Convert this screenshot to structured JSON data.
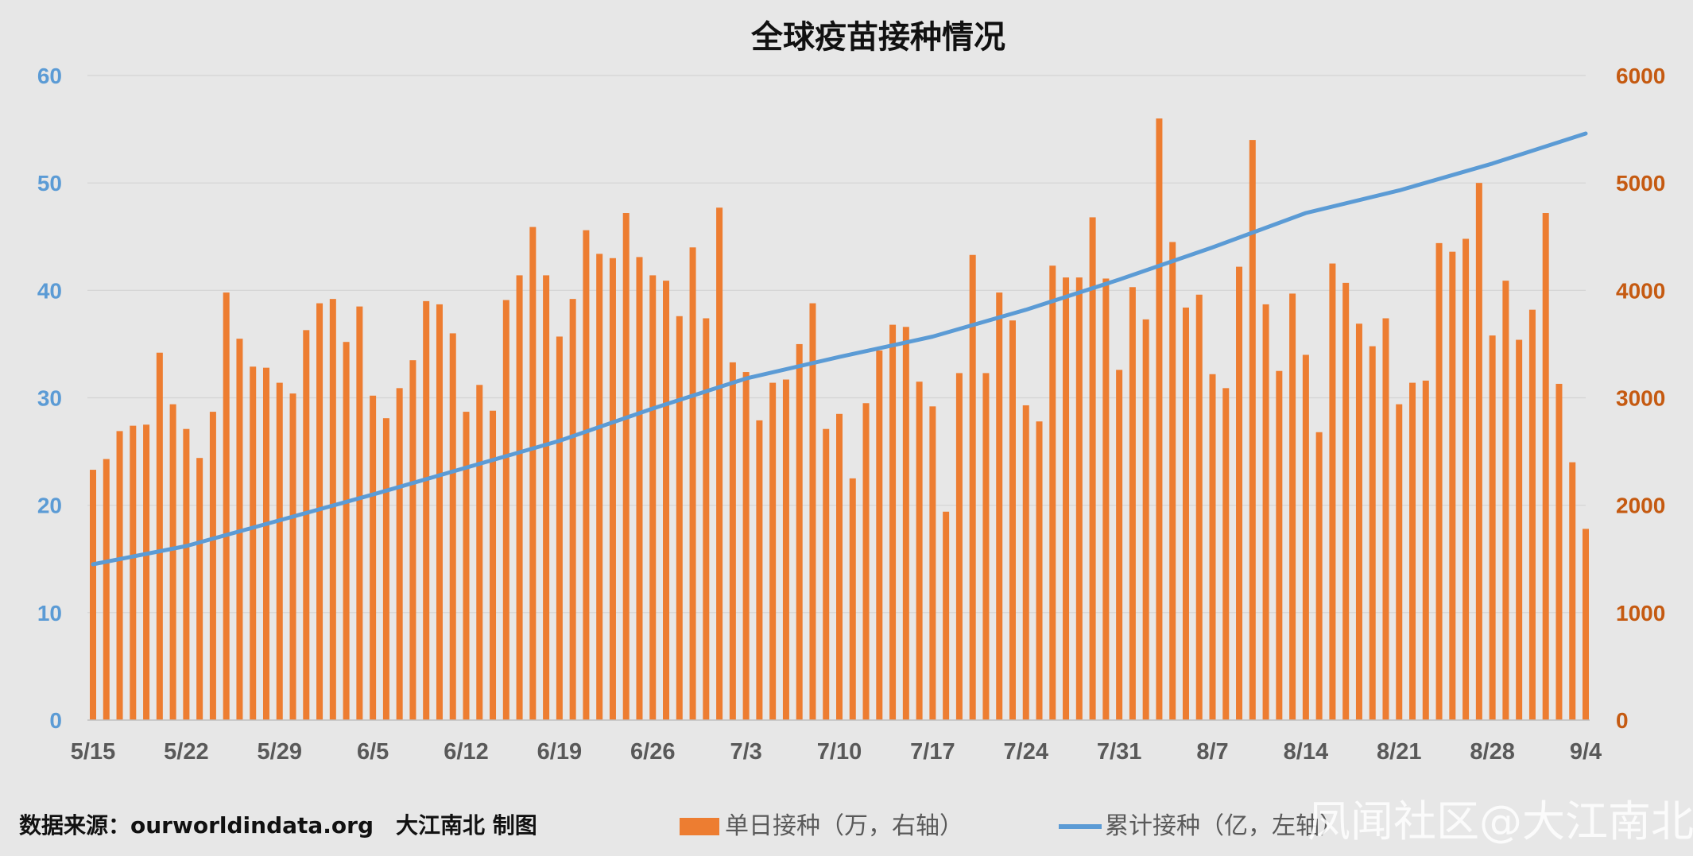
{
  "title": "全球疫苗接种情况",
  "source": "数据来源：ourworldindata.org　大江南北 制图",
  "watermark": "凤闻社区@大江南北",
  "chart_data": {
    "type": "bar",
    "title": "全球疫苗接种情况",
    "x_start": "5/15",
    "x_end": "9/4",
    "x_tick_labels": [
      "5/15",
      "5/22",
      "5/29",
      "6/5",
      "6/12",
      "6/19",
      "6/26",
      "7/3",
      "7/10",
      "7/17",
      "7/24",
      "7/31",
      "8/7",
      "8/14",
      "8/21",
      "8/28",
      "9/4"
    ],
    "y_left": {
      "ticks": [
        0,
        10,
        20,
        30,
        40,
        50,
        60
      ],
      "ylim": [
        0,
        60
      ],
      "color": "#5b9bd5"
    },
    "y_right": {
      "ticks": [
        0,
        1000,
        2000,
        3000,
        4000,
        5000,
        6000
      ],
      "ylim": [
        0,
        6000
      ],
      "color": "#c55a11"
    },
    "grid": true,
    "legend_position": "bottom",
    "series": [
      {
        "name": "单日接种（万，右轴）",
        "type": "bar",
        "axis": "right",
        "color": "#ed7d31",
        "values": [
          2330,
          2430,
          2690,
          2740,
          2750,
          3420,
          2940,
          2710,
          2440,
          2870,
          3980,
          3550,
          3290,
          3280,
          3140,
          3040,
          3630,
          3880,
          3920,
          3520,
          3850,
          3020,
          2810,
          3090,
          3350,
          3900,
          3870,
          3600,
          2870,
          3120,
          2880,
          3910,
          4140,
          4590,
          4140,
          3570,
          3920,
          4560,
          4340,
          4300,
          4720,
          4310,
          4140,
          4090,
          3760,
          4400,
          3740,
          4770,
          3330,
          3240,
          2790,
          3140,
          3170,
          3500,
          3880,
          2710,
          2850,
          2250,
          2950,
          3440,
          3680,
          3660,
          3150,
          2920,
          1940,
          3230,
          4330,
          3230,
          3980,
          3720,
          2930,
          2780,
          4230,
          4120,
          4120,
          4680,
          4110,
          3260,
          4030,
          3730,
          5600,
          4450,
          3840,
          3960,
          3220,
          3090,
          4220,
          5400,
          3870,
          3250,
          3970,
          3400,
          2680,
          4250,
          4070,
          3690,
          3480,
          3740,
          2940,
          3140,
          3160,
          4440,
          4360,
          4480,
          5000,
          3580,
          4090,
          3540,
          3820,
          4720,
          3130,
          2400,
          1780
        ]
      },
      {
        "name": "累计接种（亿，左轴）",
        "type": "line",
        "axis": "left",
        "color": "#5b9bd5",
        "values_sparse": [
          {
            "day": 0,
            "value": 14.5
          },
          {
            "day": 7,
            "value": 16.2
          },
          {
            "day": 14,
            "value": 18.6
          },
          {
            "day": 21,
            "value": 21.0
          },
          {
            "day": 28,
            "value": 23.5
          },
          {
            "day": 35,
            "value": 26.0
          },
          {
            "day": 42,
            "value": 29.0
          },
          {
            "day": 49,
            "value": 31.8
          },
          {
            "day": 56,
            "value": 33.8
          },
          {
            "day": 63,
            "value": 35.7
          },
          {
            "day": 70,
            "value": 38.2
          },
          {
            "day": 77,
            "value": 41.0
          },
          {
            "day": 84,
            "value": 44.0
          },
          {
            "day": 91,
            "value": 47.2
          },
          {
            "day": 98,
            "value": 49.3
          },
          {
            "day": 105,
            "value": 51.8
          },
          {
            "day": 112,
            "value": 54.6
          }
        ]
      }
    ]
  }
}
